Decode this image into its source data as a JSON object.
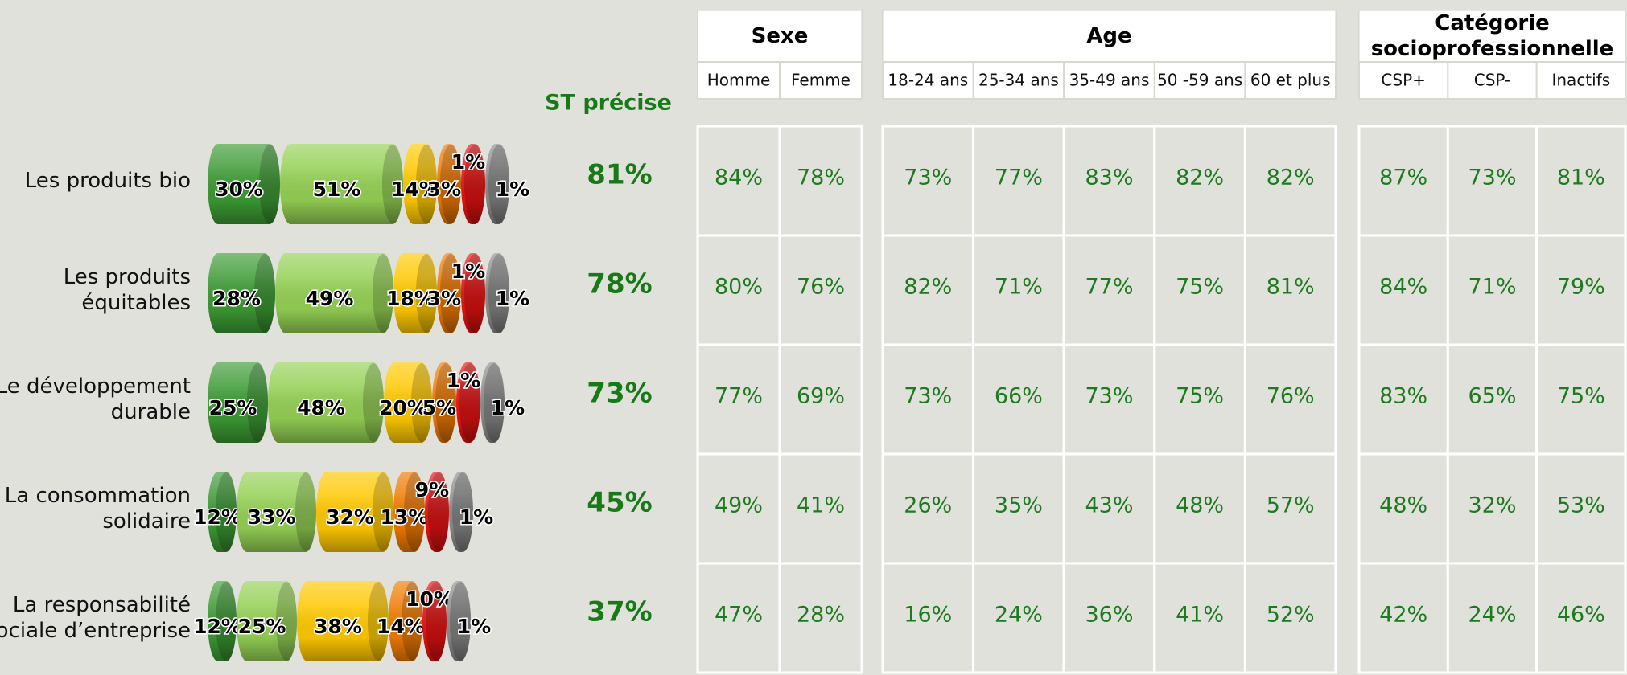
{
  "chart_data": {
    "type": "bar",
    "categories": [
      [
        "Les produits bio"
      ],
      [
        "Les produits",
        "équitables"
      ],
      [
        "Le développement",
        "durable"
      ],
      [
        "La consommation",
        "solidaire"
      ],
      [
        "La responsabilité",
        "sociale d’entreprise"
      ]
    ],
    "series": [
      {
        "color": "#3c9a34",
        "values": [
          30,
          28,
          25,
          12,
          12
        ],
        "value_labels": [
          "30%",
          "28%",
          "25%",
          "12%",
          "12%"
        ]
      },
      {
        "color": "#94d054",
        "values": [
          51,
          49,
          48,
          33,
          25
        ],
        "value_labels": [
          "51%",
          "49%",
          "48%",
          "33%",
          "25%"
        ]
      },
      {
        "color": "#ffc800",
        "values": [
          14,
          18,
          20,
          32,
          38
        ],
        "value_labels": [
          "14%",
          "18%",
          "20%",
          "32%",
          "38%"
        ]
      },
      {
        "color": "#f07a00",
        "values": [
          3,
          3,
          5,
          13,
          14
        ],
        "value_labels": [
          "3%",
          "3%",
          "5%",
          "13%",
          "14%"
        ]
      },
      {
        "color": "#e81212",
        "values": [
          1,
          1,
          1,
          9,
          10
        ],
        "value_labels": [
          "1%",
          "1%",
          "1%",
          "9%",
          "10%"
        ]
      },
      {
        "color": "#8c8c8c",
        "values": [
          1,
          1,
          1,
          1,
          1
        ],
        "value_labels": [
          "1%",
          "1%",
          "1%",
          "1%",
          "1%"
        ]
      }
    ]
  },
  "st": {
    "header": "ST précise",
    "values": [
      "81%",
      "78%",
      "73%",
      "45%",
      "37%"
    ]
  },
  "table": {
    "groups": [
      {
        "title": [
          "Sexe"
        ],
        "columns": [
          "Homme",
          "Femme"
        ]
      },
      {
        "title": [
          "Age"
        ],
        "columns": [
          "18-24 ans",
          "25-34 ans",
          "35-49 ans",
          "50 -59 ans",
          "60 et plus"
        ]
      },
      {
        "title": [
          "Catégorie",
          "socioprofessionnelle"
        ],
        "columns": [
          "CSP+",
          "CSP-",
          "Inactifs"
        ]
      }
    ],
    "rows": [
      [
        "84%",
        "78%",
        "73%",
        "77%",
        "83%",
        "82%",
        "82%",
        "87%",
        "73%",
        "81%"
      ],
      [
        "80%",
        "76%",
        "82%",
        "71%",
        "77%",
        "75%",
        "81%",
        "84%",
        "71%",
        "79%"
      ],
      [
        "77%",
        "69%",
        "73%",
        "66%",
        "73%",
        "75%",
        "76%",
        "83%",
        "65%",
        "75%"
      ],
      [
        "49%",
        "41%",
        "26%",
        "35%",
        "43%",
        "48%",
        "57%",
        "48%",
        "32%",
        "53%"
      ],
      [
        "47%",
        "28%",
        "16%",
        "24%",
        "36%",
        "41%",
        "52%",
        "42%",
        "24%",
        "46%"
      ]
    ]
  }
}
